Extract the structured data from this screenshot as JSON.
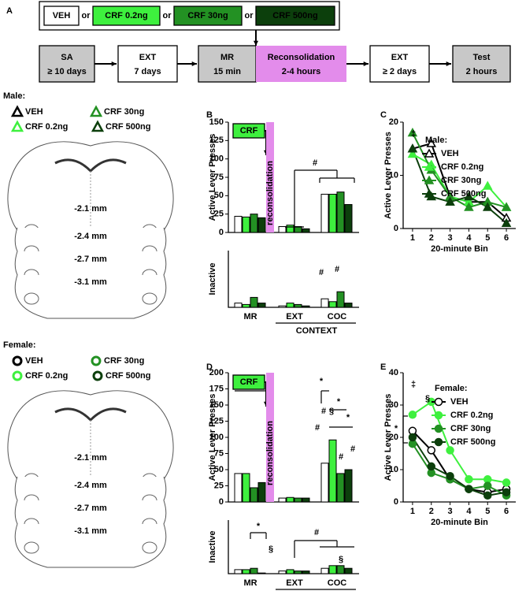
{
  "panel_labels": [
    "A",
    "B",
    "C",
    "D",
    "E"
  ],
  "timeline": {
    "treatments": [
      "VEH",
      "CRF 0.2ng",
      "CRF 30ng",
      "CRF 500ng"
    ],
    "connector": "or",
    "steps": [
      {
        "title": "SA",
        "detail": "≥ 10 days"
      },
      {
        "title": "EXT",
        "detail": "7 days"
      },
      {
        "title": "MR",
        "detail": "15 min"
      },
      {
        "title": "Reconsolidation",
        "detail": "2-4 hours"
      },
      {
        "title": "EXT",
        "detail": "≥ 2 days"
      },
      {
        "title": "Test",
        "detail": "2 hours"
      }
    ]
  },
  "male_placements": {
    "title": "Male:",
    "legend": [
      "VEH",
      "CRF 0.2ng",
      "CRF 30ng",
      "CRF 500ng"
    ],
    "sections": [
      "-2.1 mm",
      "-2.4 mm",
      "-2.7 mm",
      "-3.1 mm"
    ]
  },
  "female_placements": {
    "title": "Female:",
    "legend": [
      "VEH",
      "CRF 0.2ng",
      "CRF 30ng",
      "CRF 500ng"
    ],
    "sections": [
      "-2.1 mm",
      "-2.4 mm",
      "-2.7 mm",
      "-3.1 mm"
    ]
  },
  "chart_data": [
    {
      "type": "bar",
      "ylabel": "Active Lever Presses",
      "ylim": [
        0,
        150
      ],
      "yticks": [
        0,
        25,
        50,
        75,
        100,
        125,
        150
      ],
      "series": [
        {
          "color": "#ffffff",
          "values": [
            22,
            8,
            52
          ]
        },
        {
          "color": "#3ef03e",
          "values": [
            21,
            10,
            52
          ]
        },
        {
          "color": "#239123",
          "values": [
            25,
            8,
            55
          ]
        },
        {
          "color": "#0c3f0c",
          "values": [
            20,
            5,
            38
          ]
        }
      ],
      "annotations": [
        "CRF",
        "reconsolidation",
        "#"
      ]
    },
    {
      "type": "bar",
      "ylabel": "Inactive",
      "xlabel": "CONTEXT",
      "categories": [
        "MR",
        "EXT",
        "COC"
      ],
      "ylim": [
        0,
        40
      ],
      "series": [
        {
          "color": "#ffffff",
          "values": [
            3,
            1,
            6
          ]
        },
        {
          "color": "#3ef03e",
          "values": [
            2,
            3,
            4
          ]
        },
        {
          "color": "#239123",
          "values": [
            7,
            2,
            11
          ]
        },
        {
          "color": "#0c3f0c",
          "values": [
            3,
            1,
            3
          ]
        }
      ],
      "annotations": [
        "#",
        "#"
      ]
    },
    {
      "type": "line",
      "legend_title": "Male:",
      "ylabel": "Active Lever Presses",
      "xlabel": "20-minute Bin",
      "x": [
        1,
        2,
        3,
        4,
        5,
        6
      ],
      "xlim": [
        0.5,
        6.5
      ],
      "xticks": [
        1,
        2,
        3,
        4,
        5,
        6
      ],
      "ylim": [
        0,
        20
      ],
      "yticks": [
        0,
        10,
        20
      ],
      "marker": "triangle",
      "series": [
        {
          "name": "VEH",
          "color": "#000000",
          "values": [
            15,
            16,
            6,
            5,
            5,
            2
          ]
        },
        {
          "name": "CRF 0.2ng",
          "color": "#3ef03e",
          "values": [
            14,
            12,
            6,
            5,
            8,
            4
          ]
        },
        {
          "name": "CRF 30ng",
          "color": "#239123",
          "values": [
            18,
            11,
            6,
            4,
            5,
            4
          ]
        },
        {
          "name": "CRF 500ng",
          "color": "#0c3f0c",
          "values": [
            15,
            6,
            5,
            6,
            4,
            1
          ]
        }
      ],
      "annotations": [
        "‡"
      ]
    },
    {
      "type": "bar",
      "ylabel": "Active Lever Presses",
      "ylim": [
        0,
        200
      ],
      "yticks": [
        0,
        25,
        50,
        75,
        100,
        125,
        150,
        175,
        200
      ],
      "series": [
        {
          "color": "#ffffff",
          "values": [
            44,
            6,
            60
          ]
        },
        {
          "color": "#3ef03e",
          "values": [
            44,
            7,
            96
          ]
        },
        {
          "color": "#239123",
          "values": [
            22,
            6,
            44
          ]
        },
        {
          "color": "#0c3f0c",
          "values": [
            30,
            6,
            50
          ]
        }
      ],
      "annotations": [
        "§",
        "CRF",
        "reconsolidation",
        "*",
        "*",
        "*",
        "#",
        "#",
        "§",
        "#",
        "#"
      ]
    },
    {
      "type": "bar",
      "ylabel": "Inactive",
      "xlabel": "CONTEXT",
      "categories": [
        "MR",
        "EXT",
        "COC"
      ],
      "ylim": [
        0,
        40
      ],
      "series": [
        {
          "color": "#ffffff",
          "values": [
            3,
            2,
            4
          ]
        },
        {
          "color": "#3ef03e",
          "values": [
            3,
            3,
            6
          ]
        },
        {
          "color": "#239123",
          "values": [
            4,
            2,
            6
          ]
        },
        {
          "color": "#0c3f0c",
          "values": [
            0.5,
            2,
            4
          ]
        }
      ],
      "annotations": [
        "*",
        "§",
        "#",
        "§"
      ]
    },
    {
      "type": "line",
      "legend_title": "Female:",
      "ylabel": "Active Lever Presses",
      "xlabel": "20-minute Bin",
      "x": [
        1,
        2,
        3,
        4,
        5,
        6
      ],
      "xlim": [
        0.5,
        6.5
      ],
      "xticks": [
        1,
        2,
        3,
        4,
        5,
        6
      ],
      "ylim": [
        0,
        40
      ],
      "yticks": [
        0,
        10,
        20,
        30,
        40
      ],
      "marker": "circle",
      "series": [
        {
          "name": "VEH",
          "color": "#000000",
          "values": [
            22,
            16,
            7,
            4,
            3,
            4
          ]
        },
        {
          "name": "CRF 0.2ng",
          "color": "#3ef03e",
          "values": [
            27,
            31,
            16,
            7,
            7,
            6
          ]
        },
        {
          "name": "CRF 30ng",
          "color": "#239123",
          "values": [
            18,
            9,
            7,
            4,
            5,
            2
          ]
        },
        {
          "name": "CRF 500ng",
          "color": "#0c3f0c",
          "values": [
            20,
            11,
            8,
            4,
            2,
            3
          ]
        }
      ],
      "annotations": [
        "‡",
        "§",
        "*"
      ]
    }
  ]
}
